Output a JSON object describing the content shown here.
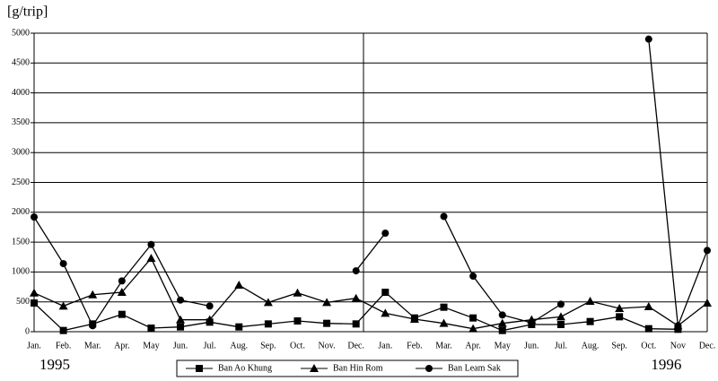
{
  "chart_data": {
    "type": "line",
    "y_axis_label": "[g/trip]",
    "categories": [
      "Jan.",
      "Feb.",
      "Mar.",
      "Apr.",
      "May",
      "Jun.",
      "Jul.",
      "Aug.",
      "Sep.",
      "Oct.",
      "Nov.",
      "Dec.",
      "Jan.",
      "Feb.",
      "Mar.",
      "Apr.",
      "May",
      "Jun.",
      "Jul.",
      "Aug.",
      "Sep.",
      "Oct.",
      "Nov",
      "Dec."
    ],
    "year_labels": [
      "1995",
      "1996"
    ],
    "series": [
      {
        "name": "Ban Ao Khung",
        "color": "#000000",
        "marker": "square",
        "values": [
          480,
          20,
          130,
          290,
          60,
          80,
          160,
          80,
          130,
          180,
          140,
          130,
          660,
          230,
          410,
          230,
          20,
          120,
          120,
          170,
          250,
          50,
          40,
          null
        ]
      },
      {
        "name": "Ban Hin Rom",
        "color": "#000000",
        "marker": "triangle",
        "values": [
          650,
          430,
          620,
          660,
          1230,
          200,
          200,
          780,
          490,
          650,
          490,
          560,
          310,
          210,
          140,
          50,
          140,
          200,
          250,
          510,
          390,
          420,
          100,
          480
        ]
      },
      {
        "name": "Ban Leam Sak",
        "color": "#000000",
        "marker": "circle",
        "values": [
          1920,
          1140,
          100,
          850,
          1460,
          530,
          430,
          null,
          null,
          null,
          null,
          1020,
          1650,
          null,
          1930,
          930,
          280,
          150,
          460,
          null,
          null,
          4900,
          100,
          1360
        ]
      }
    ],
    "ylim": [
      0,
      5000
    ],
    "yticks": [
      0,
      500,
      1000,
      1500,
      2000,
      2500,
      3000,
      3500,
      4000,
      4500,
      5000
    ],
    "grid": true
  }
}
